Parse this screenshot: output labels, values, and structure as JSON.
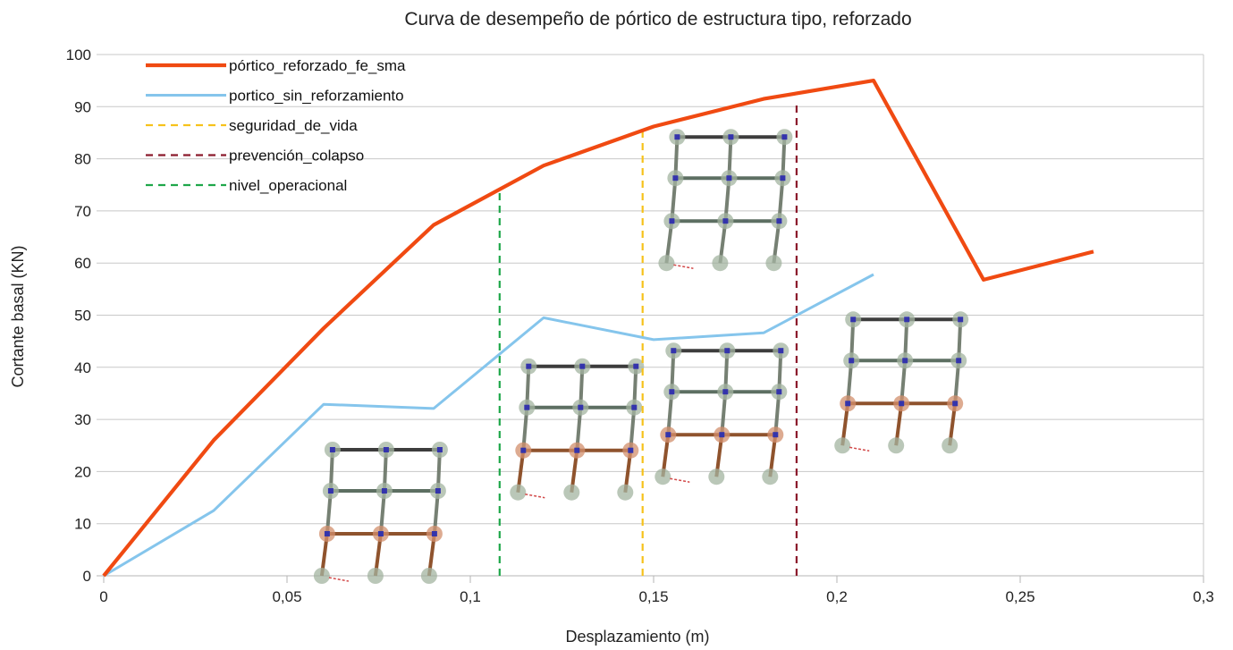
{
  "chart_data": {
    "type": "line",
    "title": "Curva de desempeño de pórtico de estructura tipo, reforzado",
    "xlabel": "Desplazamiento (m)",
    "ylabel": "Cortante basal (KN)",
    "xlim": [
      0,
      0.3
    ],
    "ylim": [
      0,
      100
    ],
    "x_ticks": [
      "0",
      "0,05",
      "0,1",
      "0,15",
      "0,2",
      "0,25",
      "0,3"
    ],
    "y_ticks": [
      "0",
      "10",
      "20",
      "30",
      "40",
      "50",
      "60",
      "70",
      "80",
      "90",
      "100"
    ],
    "grid": "horizontal",
    "legend_position": "top-left",
    "series": [
      {
        "name": "pórtico_reforzado_fe_sma",
        "color": "#f04a12",
        "style": "solid",
        "points": [
          [
            0,
            0
          ],
          [
            0.03,
            26
          ],
          [
            0.06,
            47.5
          ],
          [
            0.09,
            67.3
          ],
          [
            0.12,
            78.7
          ],
          [
            0.15,
            86.2
          ],
          [
            0.18,
            91.5
          ],
          [
            0.21,
            95
          ],
          [
            0.24,
            56.8
          ],
          [
            0.27,
            62.2
          ]
        ]
      },
      {
        "name": "portico_sin_reforzamiento",
        "color": "#85c5ec",
        "style": "solid",
        "points": [
          [
            0,
            0
          ],
          [
            0.03,
            12.5
          ],
          [
            0.06,
            32.9
          ],
          [
            0.09,
            32.1
          ],
          [
            0.12,
            49.5
          ],
          [
            0.15,
            45.3
          ],
          [
            0.18,
            46.6
          ],
          [
            0.21,
            57.8
          ]
        ]
      },
      {
        "name": "seguridad_de_vida",
        "color": "#f6c21b",
        "style": "dashed",
        "points": [
          [
            0.147,
            0
          ],
          [
            0.147,
            86.3
          ]
        ]
      },
      {
        "name": "prevención_colapso",
        "color": "#8b1a2c",
        "style": "dashed",
        "points": [
          [
            0.189,
            0
          ],
          [
            0.189,
            90.5
          ]
        ]
      },
      {
        "name": "nivel_operacional",
        "color": "#1fa74a",
        "style": "dashed",
        "points": [
          [
            0.108,
            0
          ],
          [
            0.108,
            73.5
          ]
        ]
      }
    ],
    "annotations": [
      {
        "type": "frame-diagram",
        "anchor": [
          0.0595,
          0
        ],
        "hinged_storeys": 1
      },
      {
        "type": "frame-diagram",
        "anchor": [
          0.113,
          16
        ],
        "hinged_storeys": 1
      },
      {
        "type": "frame-diagram",
        "anchor": [
          0.1525,
          19
        ],
        "hinged_storeys": 1
      },
      {
        "type": "frame-diagram",
        "anchor": [
          0.1535,
          60
        ],
        "hinged_storeys": 0
      },
      {
        "type": "frame-diagram",
        "anchor": [
          0.2015,
          25
        ],
        "hinged_storeys": 1
      }
    ]
  }
}
